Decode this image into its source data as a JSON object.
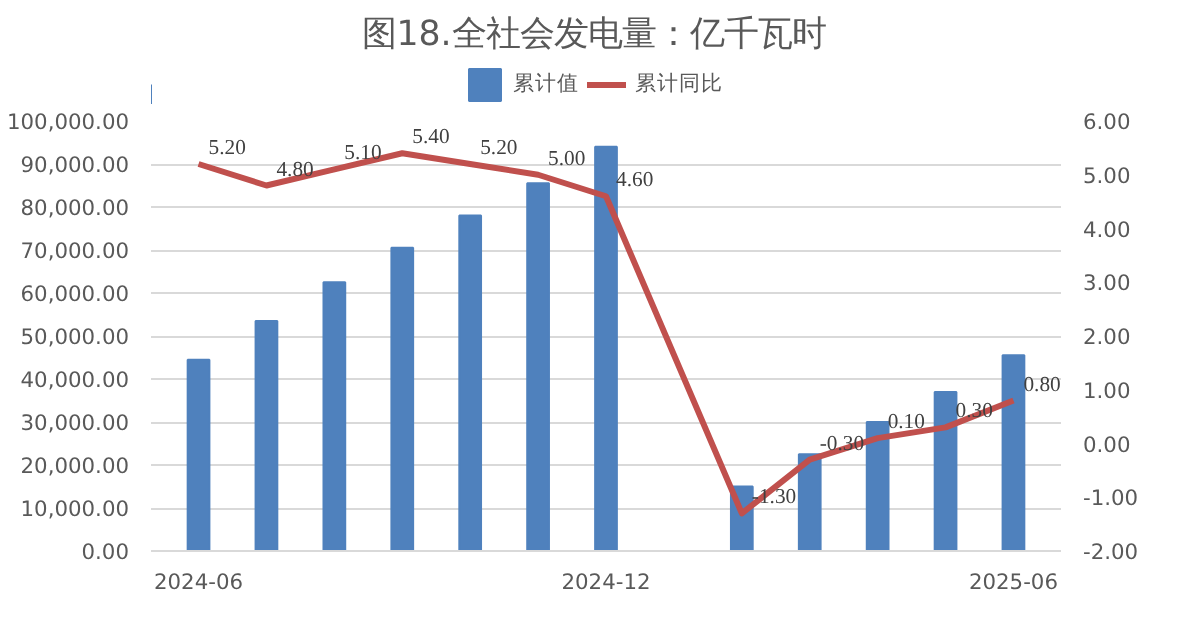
{
  "chart_data": {
    "type": "bar",
    "title": "图18.全社会发电量：亿千瓦时",
    "categories": [
      "2024-06",
      null,
      null,
      null,
      null,
      null,
      "2024-12",
      null,
      null,
      null,
      null,
      null,
      "2025-06"
    ],
    "series": [
      {
        "name": "累计值",
        "color": "#4f81bd",
        "values": [
          44500,
          53500,
          62500,
          70500,
          78000,
          85500,
          94000,
          null,
          15000,
          22500,
          30000,
          37000,
          45500
        ]
      },
      {
        "name": "累计同比",
        "type": "line",
        "axis": "y2",
        "color": "#c0504d",
        "values": [
          5.2,
          4.8,
          5.1,
          5.4,
          5.2,
          5.0,
          4.6,
          null,
          -1.3,
          -0.3,
          0.1,
          0.3,
          0.8
        ],
        "value_labels": [
          "5.20",
          "4.80",
          "5.10",
          "5.40",
          "5.20",
          "5.00",
          "4.60",
          null,
          "-1.30",
          "-0.30",
          "0.10",
          "0.30",
          "0.80"
        ]
      }
    ],
    "ylim": [
      0,
      100000
    ],
    "yticks": [
      {
        "value": 0,
        "label": "0.00"
      },
      {
        "value": 10000,
        "label": "10,000.00"
      },
      {
        "value": 20000,
        "label": "20,000.00"
      },
      {
        "value": 30000,
        "label": "30,000.00"
      },
      {
        "value": 40000,
        "label": "40,000.00"
      },
      {
        "value": 50000,
        "label": "50,000.00"
      },
      {
        "value": 60000,
        "label": "60,000.00"
      },
      {
        "value": 70000,
        "label": "70,000.00"
      },
      {
        "value": 80000,
        "label": "80,000.00"
      },
      {
        "value": 90000,
        "label": "90,000.00"
      },
      {
        "value": 100000,
        "label": "100,000.00"
      }
    ],
    "y2lim": [
      -2,
      6
    ],
    "y2ticks": [
      {
        "value": -2,
        "label": "-2.00"
      },
      {
        "value": -1,
        "label": "-1.00"
      },
      {
        "value": 0,
        "label": "0.00"
      },
      {
        "value": 1,
        "label": "1.00"
      },
      {
        "value": 2,
        "label": "2.00"
      },
      {
        "value": 3,
        "label": "3.00"
      },
      {
        "value": 4,
        "label": "4.00"
      },
      {
        "value": 5,
        "label": "5.00"
      },
      {
        "value": 6,
        "label": "6.00"
      }
    ],
    "grid": "y",
    "legend": "top",
    "marker": "none",
    "line_style": "solid"
  }
}
